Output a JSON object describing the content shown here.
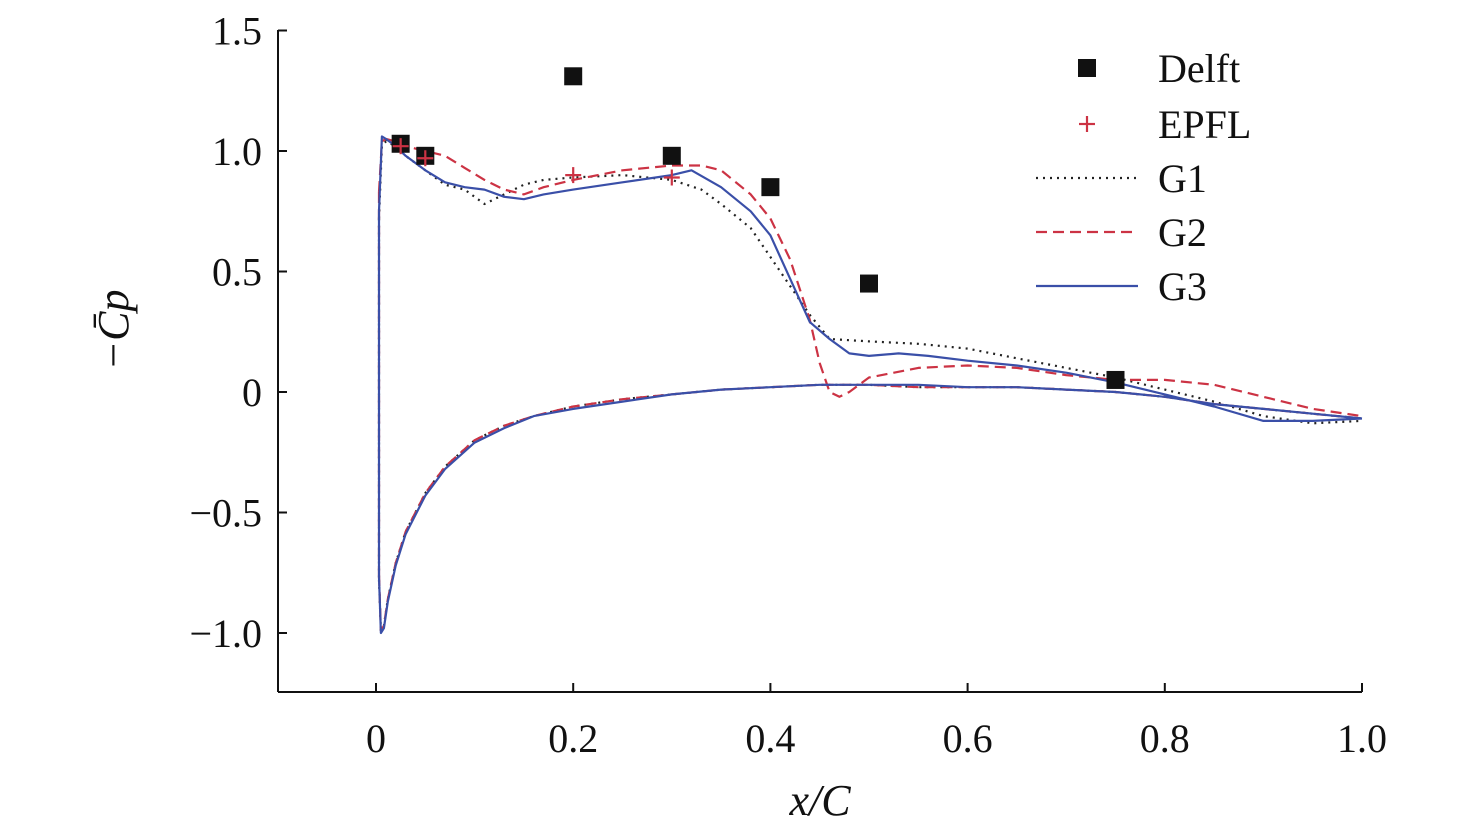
{
  "chart_data": {
    "type": "line",
    "xlabel": "x/C",
    "ylabel": "−C̄p",
    "xlim": [
      -0.1,
      1.0
    ],
    "ylim": [
      -1.25,
      1.5
    ],
    "xticks": [
      "0",
      "0.2",
      "0.4",
      "0.6",
      "0.8",
      "1.0"
    ],
    "yticks": [
      "1.5",
      "1.0",
      "0.5",
      "0",
      "−0.5",
      "−1.0"
    ],
    "grid": false,
    "legend_position": "top-right",
    "series": [
      {
        "name": "Delft",
        "kind": "marker-square",
        "color": "#111111",
        "x": [
          0.025,
          0.05,
          0.2,
          0.3,
          0.4,
          0.5,
          0.75
        ],
        "y": [
          1.03,
          0.98,
          1.31,
          0.98,
          0.85,
          0.45,
          0.05
        ]
      },
      {
        "name": "EPFL",
        "kind": "marker-plus",
        "color": "#cc3344",
        "x": [
          0.025,
          0.05,
          0.2,
          0.3
        ],
        "y": [
          1.02,
          0.97,
          0.9,
          0.89
        ]
      },
      {
        "name": "G1",
        "kind": "line-dotted",
        "color": "#222222",
        "upper_x": [
          0.003,
          0.006,
          0.01,
          0.02,
          0.03,
          0.05,
          0.07,
          0.09,
          0.11,
          0.13,
          0.15,
          0.17,
          0.2,
          0.25,
          0.3,
          0.33,
          0.35,
          0.38,
          0.4,
          0.42,
          0.44,
          0.46,
          0.5,
          0.55,
          0.6,
          0.65,
          0.7,
          0.75,
          0.8,
          0.85,
          0.9,
          0.95,
          1.0
        ],
        "upper_y": [
          0.72,
          1.02,
          1.04,
          1.02,
          0.98,
          0.92,
          0.86,
          0.84,
          0.78,
          0.82,
          0.86,
          0.88,
          0.89,
          0.9,
          0.88,
          0.84,
          0.78,
          0.68,
          0.56,
          0.44,
          0.32,
          0.22,
          0.21,
          0.2,
          0.18,
          0.14,
          0.1,
          0.06,
          0.01,
          -0.04,
          -0.1,
          -0.13,
          -0.12
        ],
        "lower_x": [
          0.003,
          0.005,
          0.008,
          0.012,
          0.02,
          0.03,
          0.05,
          0.07,
          0.1,
          0.13,
          0.16,
          0.2,
          0.25,
          0.3,
          0.35,
          0.4,
          0.45,
          0.5,
          0.55,
          0.6,
          0.65,
          0.7,
          0.75,
          0.8,
          0.85,
          0.9,
          0.95,
          1.0
        ],
        "lower_y": [
          -0.78,
          -0.99,
          -0.97,
          -0.86,
          -0.71,
          -0.58,
          -0.42,
          -0.31,
          -0.2,
          -0.14,
          -0.1,
          -0.06,
          -0.03,
          -0.01,
          0.01,
          0.02,
          0.03,
          0.03,
          0.02,
          0.02,
          0.02,
          0.01,
          0.0,
          -0.02,
          -0.05,
          -0.07,
          -0.09,
          -0.11
        ]
      },
      {
        "name": "G2",
        "kind": "line-dashed",
        "color": "#cc3344",
        "upper_x": [
          0.003,
          0.006,
          0.01,
          0.02,
          0.03,
          0.05,
          0.07,
          0.09,
          0.11,
          0.13,
          0.15,
          0.17,
          0.2,
          0.25,
          0.3,
          0.33,
          0.35,
          0.38,
          0.4,
          0.42,
          0.44,
          0.45,
          0.46,
          0.47,
          0.48,
          0.5,
          0.55,
          0.6,
          0.65,
          0.7,
          0.75,
          0.8,
          0.85,
          0.9,
          0.95,
          1.0
        ],
        "upper_y": [
          0.83,
          1.04,
          1.05,
          1.04,
          1.02,
          1.0,
          0.98,
          0.93,
          0.88,
          0.84,
          0.82,
          0.85,
          0.88,
          0.92,
          0.94,
          0.94,
          0.92,
          0.82,
          0.72,
          0.55,
          0.3,
          0.12,
          0.0,
          -0.02,
          0.0,
          0.06,
          0.1,
          0.11,
          0.1,
          0.07,
          0.05,
          0.05,
          0.03,
          -0.02,
          -0.07,
          -0.1
        ],
        "lower_x": [
          0.003,
          0.005,
          0.008,
          0.012,
          0.02,
          0.03,
          0.05,
          0.07,
          0.1,
          0.13,
          0.16,
          0.2,
          0.25,
          0.3,
          0.35,
          0.4,
          0.45,
          0.5,
          0.55,
          0.6,
          0.65,
          0.7,
          0.75,
          0.8,
          0.85,
          0.9,
          0.95,
          1.0
        ],
        "lower_y": [
          -0.76,
          -0.99,
          -0.97,
          -0.86,
          -0.71,
          -0.58,
          -0.42,
          -0.31,
          -0.2,
          -0.14,
          -0.1,
          -0.06,
          -0.03,
          -0.01,
          0.01,
          0.02,
          0.03,
          0.03,
          0.02,
          0.02,
          0.02,
          0.01,
          0.0,
          -0.02,
          -0.05,
          -0.07,
          -0.09,
          -0.11
        ]
      },
      {
        "name": "G3",
        "kind": "line-solid",
        "color": "#3a4fa8",
        "upper_x": [
          0.003,
          0.006,
          0.01,
          0.02,
          0.03,
          0.05,
          0.07,
          0.09,
          0.11,
          0.13,
          0.15,
          0.17,
          0.2,
          0.25,
          0.3,
          0.32,
          0.35,
          0.38,
          0.4,
          0.42,
          0.44,
          0.46,
          0.48,
          0.5,
          0.53,
          0.56,
          0.6,
          0.65,
          0.7,
          0.75,
          0.8,
          0.85,
          0.9,
          0.95,
          1.0
        ],
        "upper_y": [
          0.75,
          1.06,
          1.05,
          1.02,
          0.98,
          0.92,
          0.87,
          0.85,
          0.84,
          0.81,
          0.8,
          0.82,
          0.84,
          0.87,
          0.9,
          0.92,
          0.85,
          0.75,
          0.65,
          0.47,
          0.29,
          0.22,
          0.16,
          0.15,
          0.16,
          0.15,
          0.13,
          0.11,
          0.08,
          0.04,
          -0.01,
          -0.06,
          -0.12,
          -0.12,
          -0.11
        ],
        "lower_x": [
          0.003,
          0.005,
          0.008,
          0.012,
          0.02,
          0.03,
          0.05,
          0.07,
          0.1,
          0.13,
          0.16,
          0.2,
          0.25,
          0.3,
          0.35,
          0.4,
          0.45,
          0.5,
          0.55,
          0.6,
          0.65,
          0.7,
          0.75,
          0.8,
          0.85,
          0.9,
          0.95,
          1.0
        ],
        "lower_y": [
          -0.77,
          -1.0,
          -0.98,
          -0.87,
          -0.72,
          -0.59,
          -0.43,
          -0.32,
          -0.21,
          -0.15,
          -0.1,
          -0.07,
          -0.04,
          -0.01,
          0.01,
          0.02,
          0.03,
          0.03,
          0.03,
          0.02,
          0.02,
          0.01,
          0.0,
          -0.02,
          -0.05,
          -0.07,
          -0.09,
          -0.11
        ]
      }
    ]
  }
}
